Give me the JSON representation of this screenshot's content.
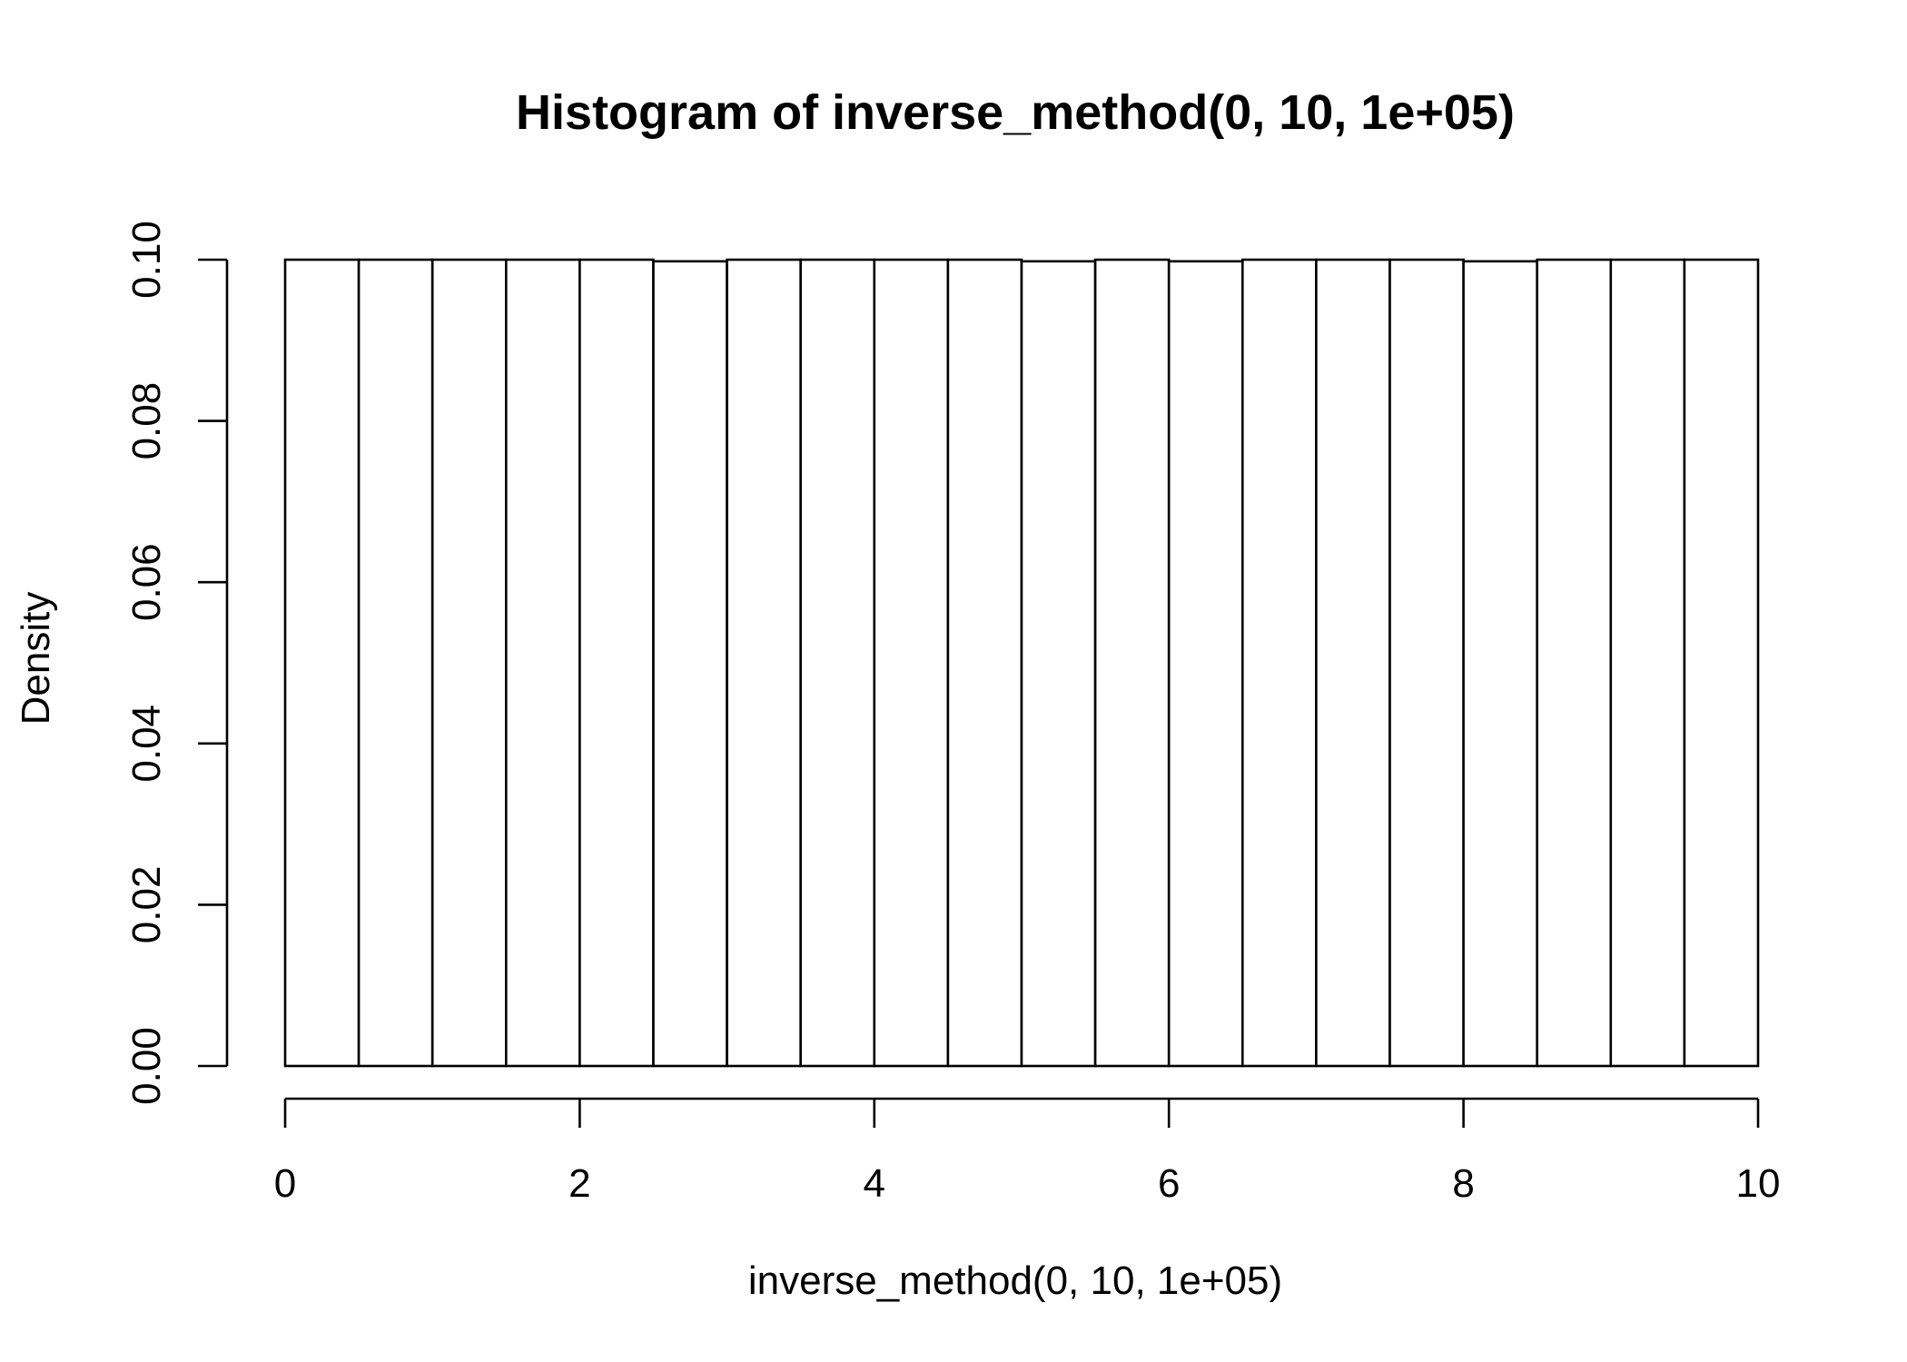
{
  "chart_data": {
    "type": "bar",
    "title": "Histogram of inverse_method(0, 10, 1e+05)",
    "xlabel": "inverse_method(0, 10, 1e+05)",
    "ylabel": "Density",
    "xlim": [
      0,
      10
    ],
    "ylim": [
      0,
      0.1
    ],
    "x_ticks": [
      "0",
      "2",
      "4",
      "6",
      "8",
      "10"
    ],
    "y_ticks": [
      "0.00",
      "0.02",
      "0.04",
      "0.06",
      "0.08",
      "0.10"
    ],
    "bin_edges": [
      0,
      0.5,
      1,
      1.5,
      2,
      2.5,
      3,
      3.5,
      4,
      4.5,
      5,
      5.5,
      6,
      6.5,
      7,
      7.5,
      8,
      8.5,
      9,
      9.5,
      10
    ],
    "values": [
      0.1,
      0.1,
      0.1,
      0.1,
      0.1,
      0.0998,
      0.1,
      0.1,
      0.1,
      0.1,
      0.0998,
      0.1,
      0.0998,
      0.1,
      0.1,
      0.1,
      0.0998,
      0.1,
      0.1,
      0.1
    ],
    "grid": false,
    "bar_fill": "#ffffff",
    "bar_stroke": "#000000"
  }
}
